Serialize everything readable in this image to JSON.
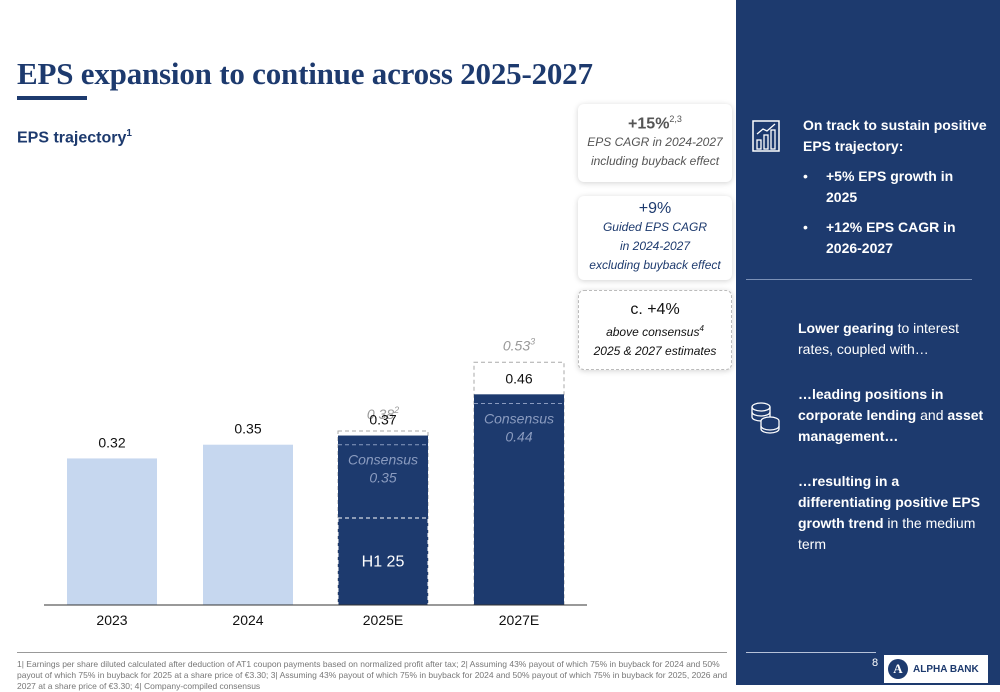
{
  "title": "EPS expansion to continue across 2025-2027",
  "subtitle": "EPS trajectory",
  "subtitle_sup": "1",
  "chart_data": {
    "type": "bar",
    "categories": [
      "2023",
      "2024",
      "2025E",
      "2027E"
    ],
    "values": [
      0.32,
      0.35,
      0.37,
      0.46
    ],
    "value_labels": [
      "0.32",
      "0.35",
      "0.37",
      "0.46"
    ],
    "h1_label": "H1 25",
    "h1_value": 0.19,
    "consensus": [
      {
        "category": "2025E",
        "value": 0.35,
        "label": "Consensus",
        "value_label": "0.35"
      },
      {
        "category": "2027E",
        "value": 0.44,
        "label": "Consensus",
        "value_label": "0.44"
      }
    ],
    "with_buyback": [
      {
        "category": "2025E",
        "value": 0.38,
        "label": "0.38",
        "sup": "2"
      },
      {
        "category": "2027E",
        "value": 0.53,
        "label": "0.53",
        "sup": "3"
      }
    ],
    "ylim": [
      0,
      0.56
    ],
    "colors": {
      "actual": "#c6d7ef",
      "estimate": "#1d3a6e",
      "ghost": "#999999"
    }
  },
  "cards": {
    "c1_big": "+15%",
    "c1_sup": "2,3",
    "c1_line1": "EPS CAGR in 2024-2027",
    "c1_line2": "including buyback effect",
    "c2_big": "+9%",
    "c2_line1": "Guided EPS CAGR",
    "c2_line2": "in 2024-2027",
    "c2_line3": "excluding buyback effect",
    "c3_big": "c. +4%",
    "c3_line1": "above consensus",
    "c3_sup": "4",
    "c3_line2": "2025 & 2027 estimates"
  },
  "side": {
    "heading": "On track to sustain positive EPS trajectory:",
    "bullets": [
      "+5% EPS growth in 2025",
      "+12% EPS CAGR in 2026-2027"
    ],
    "p1_bold": "Lower gearing",
    "p1_rest": " to interest rates, coupled with…",
    "p2_bold1": "…leading positions in corporate lending",
    "p2_mid": " and ",
    "p2_bold2": "asset management…",
    "p3_bold": "…resulting in a differentiating positive EPS growth trend",
    "p3_rest": " in the medium term",
    "icon1": "bar-chart-growth-icon",
    "icon2": "coins-stack-icon"
  },
  "footer": {
    "page_number": "8",
    "logo_text": "ALPHA BANK",
    "footnote": "1| Earnings per share diluted calculated after deduction of AT1 coupon payments based on normalized profit after tax; 2| Assuming 43% payout of which 75% in buyback for 2024 and 50% payout of which 75% in buyback for 2025 at a share price of €3.30; 3| Assuming 43% payout of which 75% in buyback for 2024 and 50% payout of which 75% in buyback for 2025, 2026 and 2027 at a share price of €3.30; 4| Company-compiled consensus"
  }
}
